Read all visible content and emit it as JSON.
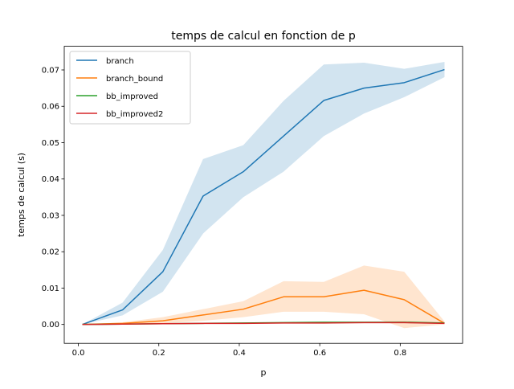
{
  "chart_data": {
    "type": "line",
    "title": "temps de calcul en fonction de p",
    "xlabel": "p",
    "ylabel": "temps de calcul (s)",
    "xlim": [
      -0.035,
      0.955
    ],
    "ylim": [
      -0.0052,
      0.0765
    ],
    "xticks": [
      "0.0",
      "0.2",
      "0.4",
      "0.6",
      "0.8"
    ],
    "xtick_values": [
      0.0,
      0.2,
      0.4,
      0.6,
      0.8
    ],
    "yticks": [
      "0.00",
      "0.01",
      "0.02",
      "0.03",
      "0.04",
      "0.05",
      "0.06",
      "0.07"
    ],
    "ytick_values": [
      0.0,
      0.01,
      0.02,
      0.03,
      0.04,
      0.05,
      0.06,
      0.07
    ],
    "grid": false,
    "legend_position": "top-left",
    "x": [
      0.01,
      0.11,
      0.21,
      0.31,
      0.41,
      0.51,
      0.61,
      0.71,
      0.81,
      0.91
    ],
    "series": [
      {
        "name": "branch",
        "color": "#1f77b4",
        "values": [
          0.0,
          0.004,
          0.0145,
          0.0353,
          0.042,
          0.0518,
          0.0616,
          0.065,
          0.0665,
          0.0701
        ],
        "band_low": [
          0.0,
          0.0025,
          0.009,
          0.025,
          0.035,
          0.042,
          0.0518,
          0.058,
          0.0625,
          0.068
        ],
        "band_high": [
          0.0,
          0.006,
          0.0205,
          0.0455,
          0.0493,
          0.0615,
          0.0715,
          0.072,
          0.0703,
          0.0722
        ]
      },
      {
        "name": "branch_bound",
        "color": "#ff7f0e",
        "values": [
          0.0,
          0.0003,
          0.001,
          0.0026,
          0.0042,
          0.0076,
          0.0076,
          0.0094,
          0.0068,
          0.0003
        ],
        "band_low": [
          0.0,
          0.0001,
          0.0003,
          0.001,
          0.002,
          0.0035,
          0.0035,
          0.0028,
          -0.001,
          0.0
        ],
        "band_high": [
          0.0,
          0.0006,
          0.002,
          0.0042,
          0.0064,
          0.0119,
          0.0117,
          0.0162,
          0.0145,
          0.0008
        ]
      },
      {
        "name": "bb_improved",
        "color": "#2ca02c",
        "values": [
          0.0,
          0.0001,
          0.0002,
          0.0003,
          0.0004,
          0.0005,
          0.0006,
          0.0006,
          0.0006,
          0.0004
        ],
        "band_low": [
          0.0,
          0.0,
          0.0001,
          0.0002,
          0.0003,
          0.0004,
          0.0004,
          0.0004,
          0.0004,
          0.0002
        ],
        "band_high": [
          0.0,
          0.0002,
          0.0003,
          0.0004,
          0.0005,
          0.0006,
          0.0008,
          0.0008,
          0.0009,
          0.0006
        ]
      },
      {
        "name": "bb_improved2",
        "color": "#d62728",
        "values": [
          0.0,
          0.0001,
          0.0002,
          0.0003,
          0.0003,
          0.0004,
          0.0004,
          0.0005,
          0.0005,
          0.0003
        ],
        "band_low": [
          0.0,
          0.0,
          0.0001,
          0.0002,
          0.0002,
          0.0003,
          0.0003,
          0.0003,
          0.0003,
          0.0002
        ],
        "band_high": [
          0.0,
          0.0002,
          0.0003,
          0.0004,
          0.0004,
          0.0005,
          0.0005,
          0.0007,
          0.0008,
          0.0005
        ]
      }
    ]
  }
}
